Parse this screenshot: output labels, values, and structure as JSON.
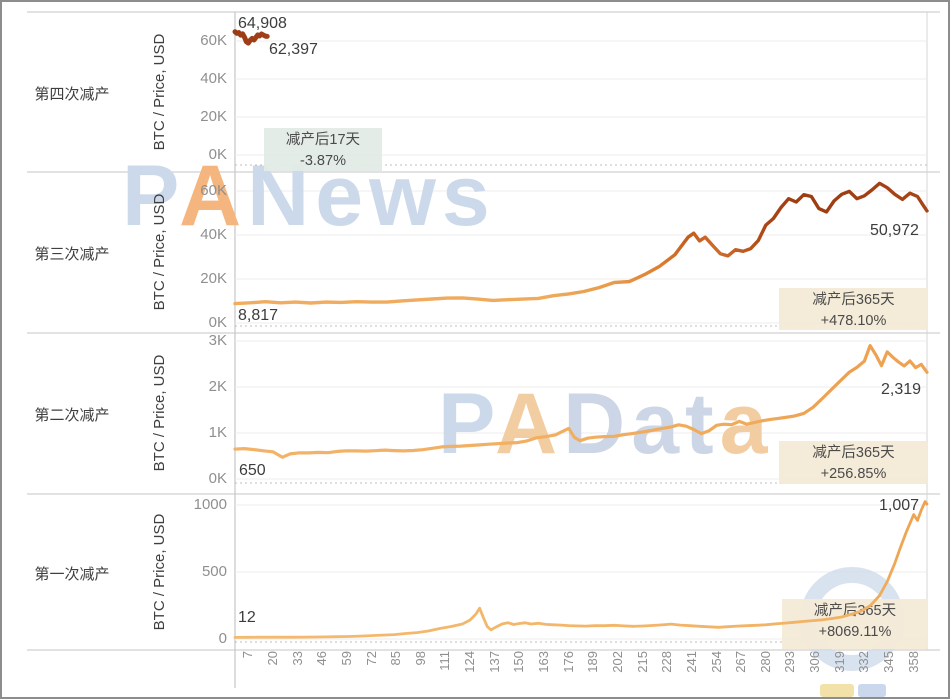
{
  "colors": {
    "line_low": "#f2b369",
    "line_mid": "#e8913d",
    "line_high": "#a8431a",
    "annotation_green_bg": "#e2ebe6",
    "annotation_cream_bg": "#f4ead7",
    "watermark_blue": "#ccd9eb",
    "watermark_orange": "#f5b57e",
    "tick_text": "#8f8f8f",
    "label_text": "#3f3f3f"
  },
  "watermarks": {
    "panews": {
      "part1": "P",
      "part2": "A",
      "part3": "News"
    },
    "padata": {
      "part1": "P",
      "part2": "A",
      "part3": "Dat",
      "part4": "a"
    }
  },
  "x_axis": {
    "tick_labels": [
      7,
      20,
      33,
      46,
      59,
      72,
      85,
      98,
      111,
      124,
      137,
      150,
      163,
      176,
      189,
      202,
      215,
      228,
      241,
      254,
      267,
      280,
      293,
      306,
      319,
      332,
      345,
      358
    ]
  },
  "chart_data": [
    {
      "type": "line",
      "row_label": "第四次减产",
      "ylabel": "BTC / Price, USD",
      "ytick_values": [
        0,
        20000,
        40000,
        60000
      ],
      "ytick_labels": [
        "0K",
        "20K",
        "40K",
        "60K"
      ],
      "xlim": [
        0,
        365
      ],
      "start_label": "64,908",
      "end_label": "62,397",
      "annotation": {
        "line1": "减产后17天",
        "line2": "-3.87%"
      },
      "days": [
        0,
        1,
        2,
        3,
        4,
        5,
        6,
        7,
        8,
        9,
        10,
        11,
        12,
        13,
        14,
        15,
        16,
        17
      ],
      "prices": [
        64908,
        64050,
        64400,
        63100,
        63800,
        62000,
        59600,
        58900,
        60400,
        61300,
        60500,
        61900,
        63200,
        62700,
        63700,
        63100,
        62600,
        62397
      ],
      "line_gradient": [
        [
          0,
          "#9d3b16"
        ],
        [
          0.05,
          "#a04017"
        ]
      ]
    },
    {
      "type": "line",
      "row_label": "第三次减产",
      "ylabel": "BTC / Price, USD",
      "ytick_values": [
        0,
        20000,
        40000,
        60000
      ],
      "ytick_labels": [
        "0K",
        "20K",
        "40K",
        "60K"
      ],
      "xlim": [
        0,
        365
      ],
      "start_label": "8,817",
      "end_label": "50,972",
      "annotation": {
        "line1": "减产后365天",
        "line2": "+478.10%"
      },
      "days": [
        0,
        8,
        16,
        24,
        32,
        40,
        48,
        56,
        64,
        72,
        80,
        88,
        96,
        104,
        112,
        120,
        128,
        136,
        144,
        152,
        160,
        168,
        176,
        184,
        192,
        200,
        208,
        216,
        224,
        232,
        239,
        242,
        245,
        248,
        252,
        256,
        260,
        264,
        268,
        272,
        276,
        280,
        284,
        288,
        292,
        296,
        300,
        304,
        308,
        312,
        316,
        320,
        324,
        328,
        332,
        336,
        340,
        344,
        348,
        352,
        356,
        360,
        363,
        365
      ],
      "prices": [
        8817,
        9200,
        9700,
        9180,
        9520,
        9100,
        9500,
        9380,
        9700,
        9480,
        9500,
        10050,
        10500,
        10900,
        11300,
        11420,
        10850,
        10280,
        10600,
        10850,
        11180,
        12400,
        13250,
        14300,
        16100,
        18400,
        18800,
        22000,
        25800,
        31000,
        39000,
        40800,
        37300,
        39000,
        35200,
        31500,
        30500,
        33300,
        32600,
        33800,
        37500,
        44500,
        47500,
        52500,
        56500,
        55000,
        58300,
        57500,
        52000,
        50500,
        55500,
        58500,
        59800,
        56500,
        57800,
        60500,
        63500,
        61500,
        58500,
        56200,
        59000,
        57500,
        53500,
        50972
      ],
      "line_gradient": [
        [
          0,
          "#f0ad60"
        ],
        [
          0.45,
          "#efaa5c"
        ],
        [
          0.55,
          "#e9994b"
        ],
        [
          0.615,
          "#dd7e31"
        ],
        [
          0.655,
          "#c35d1e"
        ],
        [
          0.68,
          "#cc6526"
        ],
        [
          0.7,
          "#cf6c2b"
        ],
        [
          0.735,
          "#c05a20"
        ],
        [
          0.77,
          "#a94413"
        ],
        [
          0.82,
          "#9e3d12"
        ],
        [
          0.88,
          "#a03e13"
        ],
        [
          1,
          "#a84517"
        ]
      ]
    },
    {
      "type": "line",
      "row_label": "第二次减产",
      "ylabel": "BTC / Price, USD",
      "ytick_values": [
        0,
        1000,
        2000,
        3000
      ],
      "ytick_labels": [
        "0K",
        "1K",
        "2K",
        "3K"
      ],
      "xlim": [
        0,
        365
      ],
      "start_label": "650",
      "end_label": "2,319",
      "annotation": {
        "line1": "减产后365天",
        "line2": "+256.85%"
      },
      "days": [
        0,
        5,
        10,
        15,
        20,
        25,
        29,
        34,
        39,
        44,
        49,
        54,
        59,
        64,
        69,
        74,
        79,
        84,
        89,
        94,
        99,
        104,
        109,
        114,
        119,
        124,
        129,
        134,
        139,
        144,
        149,
        154,
        159,
        164,
        169,
        173,
        176,
        179,
        182,
        186,
        190,
        195,
        200,
        205,
        210,
        215,
        220,
        225,
        230,
        234,
        238,
        242,
        246,
        250,
        254,
        258,
        262,
        266,
        270,
        274,
        278,
        282,
        286,
        290,
        295,
        300,
        305,
        310,
        315,
        320,
        324,
        328,
        332,
        335,
        338,
        341,
        344,
        347,
        350,
        353,
        356,
        359,
        362,
        365
      ],
      "prices": [
        650,
        660,
        640,
        612,
        592,
        472,
        545,
        570,
        568,
        578,
        572,
        600,
        612,
        610,
        606,
        615,
        628,
        618,
        610,
        620,
        636,
        668,
        698,
        708,
        715,
        728,
        742,
        756,
        770,
        782,
        792,
        828,
        895,
        922,
        958,
        1040,
        1100,
        905,
        832,
        888,
        908,
        922,
        928,
        962,
        992,
        1022,
        1058,
        1096,
        1132,
        1178,
        1148,
        1076,
        988,
        1048,
        1168,
        1192,
        1180,
        1252,
        1192,
        1228,
        1266,
        1292,
        1312,
        1336,
        1368,
        1425,
        1560,
        1758,
        1962,
        2162,
        2322,
        2425,
        2562,
        2900,
        2702,
        2462,
        2762,
        2645,
        2542,
        2458,
        2568,
        2422,
        2492,
        2319
      ],
      "line_gradient": [
        [
          0,
          "#f2b369"
        ],
        [
          0.45,
          "#f1af62"
        ],
        [
          0.75,
          "#efaa5a"
        ],
        [
          0.88,
          "#eda050"
        ],
        [
          1,
          "#eea455"
        ]
      ]
    },
    {
      "type": "line",
      "row_label": "第一次减产",
      "ylabel": "BTC / Price, USD",
      "ytick_values": [
        0,
        500,
        1000
      ],
      "ytick_labels": [
        "0",
        "500",
        "1000"
      ],
      "xlim": [
        0,
        365
      ],
      "start_label": "12",
      "end_label": "1,007",
      "annotation": {
        "line1": "减产后365天",
        "line2": "+8069.11%"
      },
      "days": [
        0,
        6,
        12,
        18,
        24,
        30,
        36,
        42,
        48,
        54,
        60,
        66,
        72,
        78,
        84,
        90,
        96,
        102,
        108,
        114,
        120,
        124,
        127,
        129,
        131,
        133,
        135,
        138,
        141,
        144,
        147,
        150,
        153,
        156,
        160,
        164,
        168,
        172,
        176,
        180,
        185,
        190,
        195,
        200,
        205,
        210,
        215,
        220,
        225,
        230,
        235,
        240,
        245,
        250,
        255,
        260,
        265,
        270,
        275,
        280,
        285,
        290,
        295,
        300,
        305,
        310,
        315,
        320,
        325,
        330,
        335,
        340,
        344,
        348,
        351,
        354,
        356,
        358,
        360,
        362,
        364,
        365
      ],
      "prices": [
        12,
        12.7,
        13.1,
        13.3,
        13.4,
        13.6,
        14.1,
        14.6,
        15.5,
        17,
        19,
        21.5,
        25,
        29,
        33,
        41,
        48,
        60,
        78,
        93,
        112,
        142,
        185,
        230,
        160,
        93,
        68,
        92,
        113,
        122,
        108,
        116,
        121,
        112,
        117,
        109,
        106,
        104,
        100,
        98,
        96,
        100,
        99,
        102,
        98,
        95,
        97,
        101,
        105,
        111,
        104,
        99,
        95,
        91,
        87,
        92,
        96,
        99,
        102,
        106,
        113,
        119,
        125,
        131,
        137,
        143,
        153,
        164,
        184,
        207,
        248,
        325,
        428,
        565,
        685,
        795,
        862,
        928,
        885,
        962,
        1025,
        1007
      ],
      "line_gradient": [
        [
          0,
          "#f4ba70"
        ],
        [
          0.9,
          "#f2b264"
        ],
        [
          0.96,
          "#efa653"
        ],
        [
          1,
          "#eda24e"
        ]
      ]
    }
  ]
}
